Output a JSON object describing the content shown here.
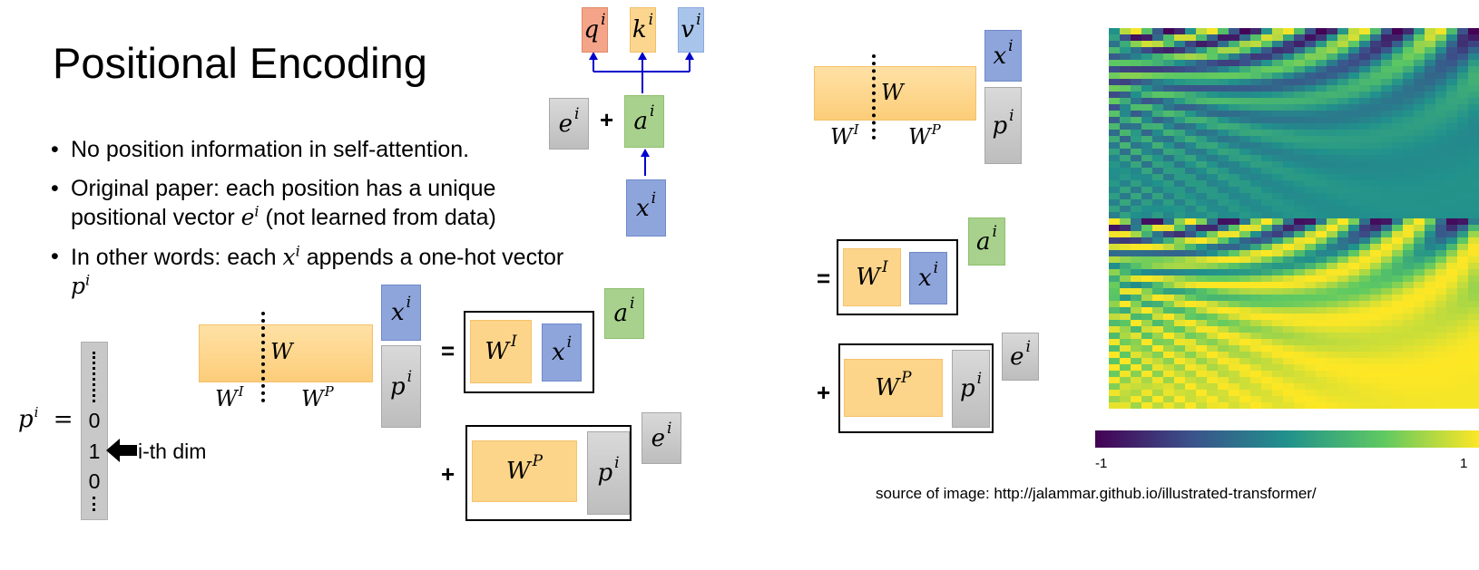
{
  "title": "Positional Encoding",
  "bullets": [
    {
      "text1": "No position information in self-attention."
    },
    {
      "text1": "Original paper: each position has a unique positional vector ",
      "math": "e",
      "sup": "i",
      "text2": " (not learned from data)"
    },
    {
      "text1": "In other words: each ",
      "math": "x",
      "sup": "i",
      "text2": " appends a one-hot vector ",
      "math2": "p",
      "sup2": "i"
    }
  ],
  "symbols": {
    "q": "q",
    "k": "k",
    "v": "v",
    "e": "e",
    "a": "a",
    "x": "x",
    "p": "p",
    "W": "W",
    "WI": "W",
    "WP": "W",
    "sup_i": "i",
    "sup_I": "I",
    "sup_P": "P",
    "plus": "+",
    "equals": "="
  },
  "onehot": {
    "label": "p",
    "label_sup": "i",
    "equals": "=",
    "values": [
      "0",
      "1",
      "0"
    ],
    "arrow_label": "i-th dim"
  },
  "colorbar": {
    "min_label": "-1",
    "max_label": "1",
    "colormap": "viridis"
  },
  "source": "source of image: http://jalammar.github.io/illustrated-transformer/",
  "colors": {
    "orange": "#fdd58a",
    "blue": "#8ea5dc",
    "green": "#a8d18d",
    "gray": "#c8c8c8",
    "red": "#f4a489",
    "arrow": "#0000cc"
  }
}
